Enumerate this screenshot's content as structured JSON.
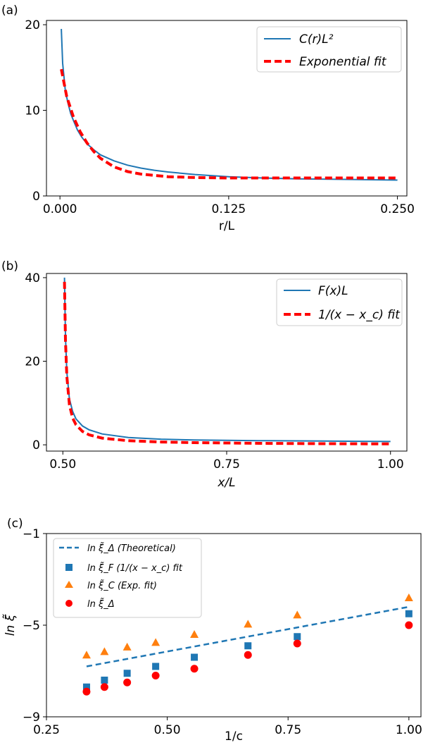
{
  "chart_data": [
    {
      "panel_label": "(a)",
      "type": "line",
      "xlabel": "r/L",
      "ylabel": "",
      "xlim": [
        -0.01,
        0.257
      ],
      "ylim": [
        0,
        20.5
      ],
      "xticks": [
        0.0,
        0.125,
        0.25
      ],
      "xtick_labels": [
        "0.000",
        "0.125",
        "0.250"
      ],
      "yticks": [
        0,
        10,
        20
      ],
      "ytick_labels": [
        "0",
        "10",
        "20"
      ],
      "legend_position": "top-right",
      "series": [
        {
          "name": "C(r)L²",
          "style": "solid",
          "color": "#1f77b4",
          "x": [
            0.001,
            0.002,
            0.004,
            0.006,
            0.008,
            0.01,
            0.013,
            0.016,
            0.02,
            0.025,
            0.03,
            0.04,
            0.05,
            0.06,
            0.07,
            0.08,
            0.1,
            0.125,
            0.15,
            0.175,
            0.2,
            0.225,
            0.25
          ],
          "y": [
            19.5,
            15.5,
            12.3,
            10.8,
            9.6,
            8.8,
            7.7,
            6.9,
            6.1,
            5.4,
            4.8,
            4.1,
            3.6,
            3.25,
            3.0,
            2.8,
            2.5,
            2.25,
            2.1,
            2.0,
            1.95,
            1.9,
            1.85
          ]
        },
        {
          "name": "Exponential fit",
          "style": "dashed",
          "color": "#ff0000",
          "x": [
            0.001,
            0.005,
            0.01,
            0.015,
            0.02,
            0.025,
            0.03,
            0.04,
            0.05,
            0.06,
            0.08,
            0.1,
            0.125,
            0.15,
            0.2,
            0.25
          ],
          "y": [
            14.8,
            11.6,
            9.2,
            7.5,
            6.2,
            5.2,
            4.4,
            3.4,
            2.85,
            2.55,
            2.25,
            2.15,
            2.1,
            2.1,
            2.1,
            2.1
          ]
        }
      ]
    },
    {
      "panel_label": "(b)",
      "type": "line",
      "xlabel": "x/L",
      "ylabel": "",
      "xlim": [
        0.475,
        1.025
      ],
      "ylim": [
        -1.5,
        41
      ],
      "xticks": [
        0.5,
        0.75,
        1.0
      ],
      "xtick_labels": [
        "0.50",
        "0.75",
        "1.00"
      ],
      "yticks": [
        0,
        20,
        40
      ],
      "ytick_labels": [
        "0",
        "20",
        "40"
      ],
      "legend_position": "top-right",
      "series": [
        {
          "name": "F(x)L",
          "style": "solid",
          "color": "#1f77b4",
          "x": [
            0.5025,
            0.504,
            0.506,
            0.51,
            0.515,
            0.52,
            0.53,
            0.54,
            0.56,
            0.6,
            0.65,
            0.7,
            0.8,
            0.9,
            1.0
          ],
          "y": [
            40.0,
            26.0,
            17.5,
            11.0,
            8.0,
            6.2,
            4.5,
            3.6,
            2.6,
            1.75,
            1.35,
            1.15,
            1.0,
            0.9,
            0.8
          ]
        },
        {
          "name": "1/(x − x_c) fit",
          "style": "dashed",
          "color": "#ff0000",
          "x": [
            0.5025,
            0.504,
            0.506,
            0.51,
            0.515,
            0.52,
            0.53,
            0.54,
            0.56,
            0.6,
            0.65,
            0.7,
            0.8,
            0.9,
            1.0
          ],
          "y": [
            39.0,
            25.0,
            16.5,
            9.6,
            6.4,
            4.8,
            3.2,
            2.4,
            1.6,
            0.98,
            0.68,
            0.52,
            0.35,
            0.27,
            0.22
          ]
        }
      ]
    },
    {
      "panel_label": "(c)",
      "type": "scatter",
      "xlabel": "1/c",
      "ylabel": "ln ξ̃",
      "xlim": [
        0.25,
        1.025
      ],
      "ylim": [
        -9,
        -1
      ],
      "xticks": [
        0.25,
        0.5,
        0.75,
        1.0
      ],
      "xtick_labels": [
        "0.25",
        "0.50",
        "0.75",
        "1.00"
      ],
      "yticks": [
        -9,
        -5,
        -1
      ],
      "ytick_labels": [
        "−9",
        "−5",
        "−1"
      ],
      "legend_position": "top-left",
      "series": [
        {
          "name": "ln ξ̃_Δ (Theoretical)",
          "marker": "dashed-line",
          "color": "#1f77b4",
          "x": [
            0.333,
            1.0
          ],
          "y": [
            -6.8,
            -4.2
          ]
        },
        {
          "name": "ln ξ̃_F (1/(x − x_c) fit",
          "marker": "square",
          "color": "#1f77b4",
          "x": [
            0.333,
            0.37,
            0.417,
            0.476,
            0.556,
            0.667,
            0.769,
            1.0
          ],
          "y": [
            -7.7,
            -7.4,
            -7.1,
            -6.8,
            -6.4,
            -5.9,
            -5.5,
            -4.5
          ]
        },
        {
          "name": "ln ξ̃_C (Exp. fit)",
          "marker": "triangle",
          "color": "#ff7f0e",
          "x": [
            0.333,
            0.37,
            0.417,
            0.476,
            0.556,
            0.667,
            0.769,
            1.0
          ],
          "y": [
            -6.3,
            -6.15,
            -5.95,
            -5.75,
            -5.4,
            -4.95,
            -4.55,
            -3.8
          ]
        },
        {
          "name": "ln ξ̃_Δ",
          "marker": "circle",
          "color": "#ff0000",
          "x": [
            0.333,
            0.37,
            0.417,
            0.476,
            0.556,
            0.667,
            0.769,
            1.0
          ],
          "y": [
            -7.9,
            -7.7,
            -7.5,
            -7.2,
            -6.9,
            -6.3,
            -5.8,
            -5.0
          ]
        }
      ]
    }
  ]
}
